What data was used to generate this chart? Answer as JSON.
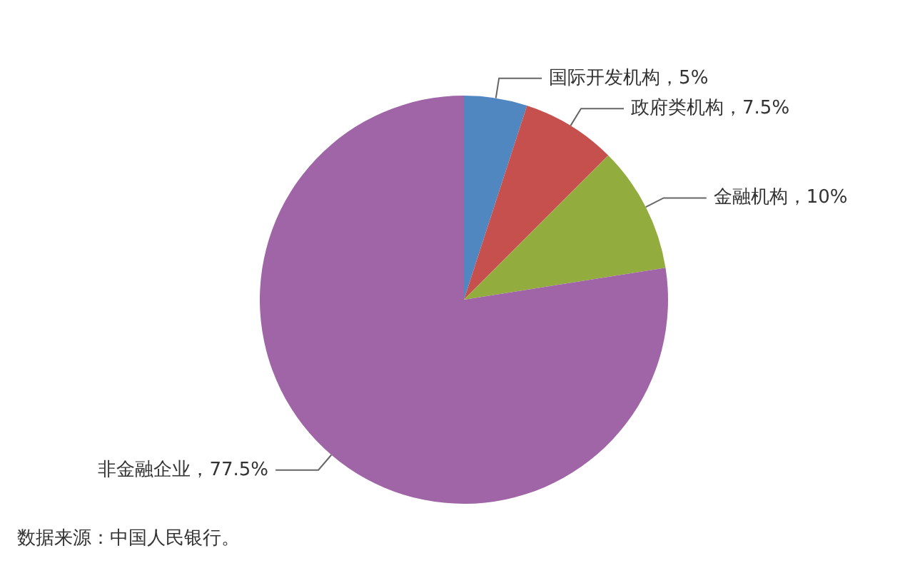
{
  "chart_data": {
    "type": "pie",
    "categories": [
      "国际开发机构",
      "政府类机构",
      "金融机构",
      "非金融企业"
    ],
    "values": [
      5,
      7.5,
      10,
      77.5
    ],
    "value_labels": [
      "5%",
      "7.5%",
      "10%",
      "77.5%"
    ],
    "colors": [
      "#5087c1",
      "#c5504e",
      "#93ac3e",
      "#9f65a7"
    ],
    "legend": false,
    "annotations": [
      "数据来源：中国人民银行。"
    ]
  }
}
